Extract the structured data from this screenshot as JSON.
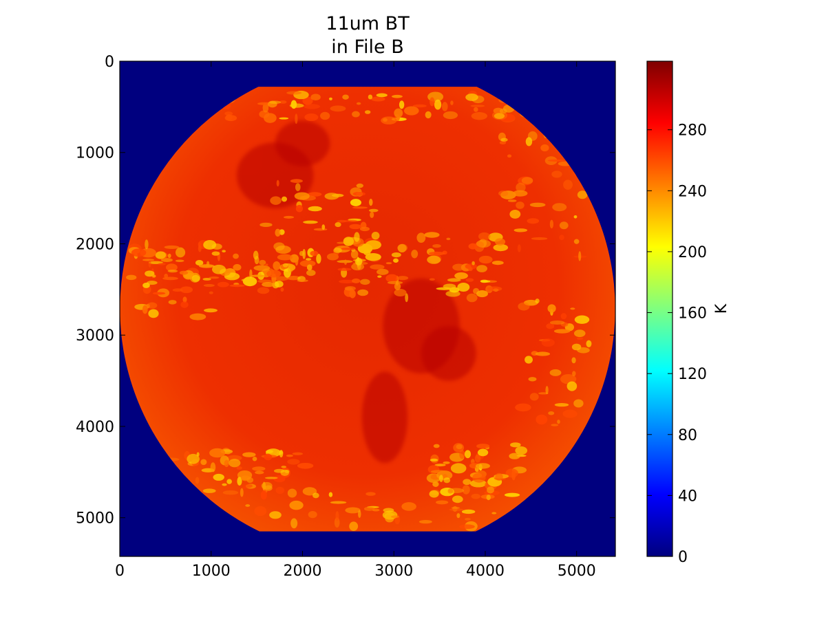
{
  "chart_data": {
    "type": "heatmap",
    "title_lines": [
      "11um BT",
      "in File B"
    ],
    "xlabel": "",
    "ylabel": "",
    "xlim": [
      0,
      5424
    ],
    "ylim": [
      5424,
      0
    ],
    "x_ticks": [
      0,
      1000,
      2000,
      3000,
      4000,
      5000
    ],
    "y_ticks": [
      0,
      1000,
      2000,
      3000,
      4000,
      5000
    ],
    "background_value": 0,
    "disk": {
      "center": [
        2712,
        2712
      ],
      "radius": 2710,
      "clip_top": 280,
      "clip_bottom": 5150
    },
    "description_values": {
      "earth_surface_typical": 285,
      "cold_cloud_tops_typical": 215
    },
    "colorbar": {
      "label": "K",
      "vmin": 0,
      "vmax": 325,
      "ticks": [
        0,
        40,
        80,
        120,
        160,
        200,
        240,
        280
      ],
      "colormap": "jet"
    },
    "colors": {
      "background": "#00007f",
      "jet": [
        "#00007f",
        "#0000ff",
        "#007fff",
        "#00ffff",
        "#7fff7f",
        "#ffff00",
        "#ff7f00",
        "#ff0000",
        "#7f0000"
      ]
    }
  }
}
